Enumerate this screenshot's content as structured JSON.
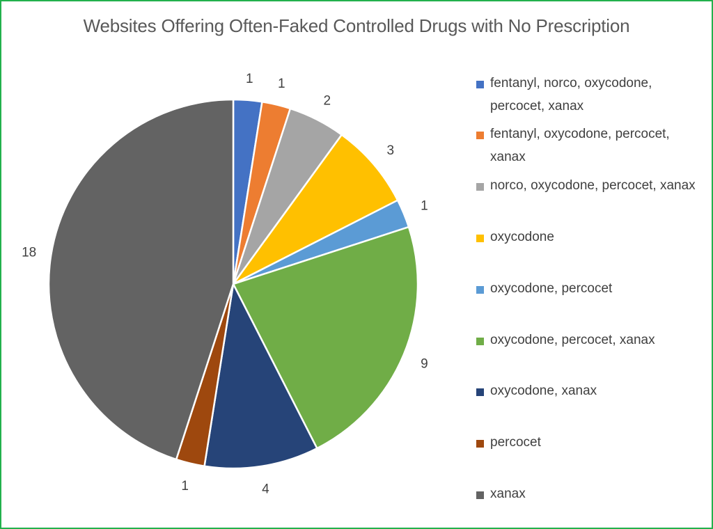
{
  "chart_data": {
    "type": "pie",
    "title": "Websites Offering Often-Faked Controlled Drugs with No Prescription",
    "categories": [
      "fentanyl, norco, oxycodone, percocet, xanax",
      "fentanyl, oxycodone, percocet, xanax",
      "norco, oxycodone, percocet, xanax",
      "oxycodone",
      "oxycodone, percocet",
      "oxycodone, percocet, xanax",
      "oxycodone, xanax",
      "percocet",
      "xanax"
    ],
    "values": [
      1,
      1,
      2,
      3,
      1,
      9,
      4,
      1,
      18
    ],
    "colors": [
      "#4472c4",
      "#ed7d31",
      "#a5a5a5",
      "#ffc000",
      "#5b9bd5",
      "#70ad47",
      "#264478",
      "#9e480e",
      "#636363"
    ],
    "legend_position": "right",
    "data_labels": true
  }
}
